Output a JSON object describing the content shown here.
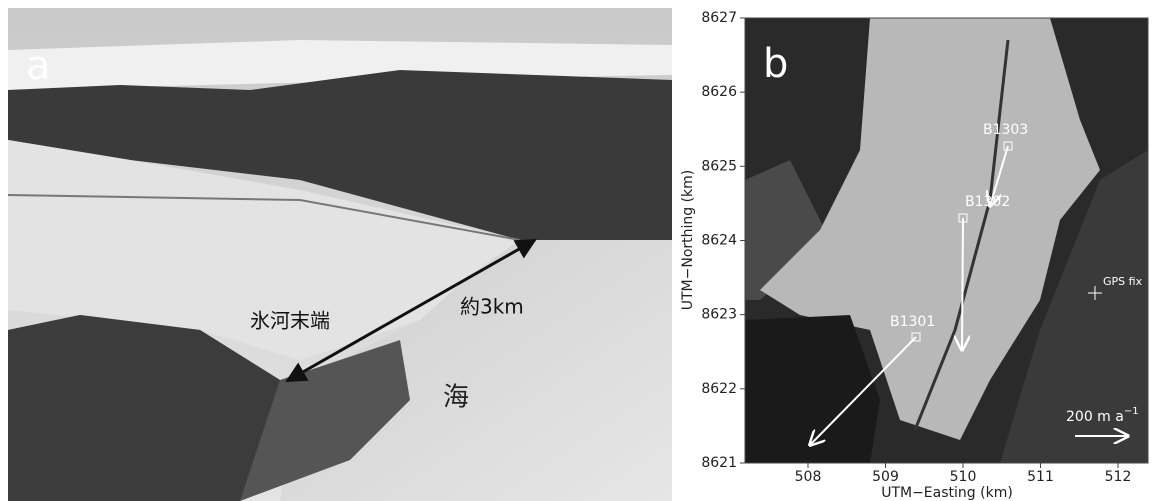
{
  "panel_a": {
    "label": "a",
    "annotations": {
      "terminus": "氷河末端",
      "distance": "約3km",
      "sea": "海"
    }
  },
  "panel_b": {
    "label": "b",
    "x_label": "UTM−Easting (km)",
    "y_label": "UTM−Northing (km)",
    "x_ticks": [
      508,
      509,
      510,
      511,
      512
    ],
    "y_ticks": [
      8621,
      8622,
      8623,
      8624,
      8625,
      8626,
      8627
    ],
    "stations": [
      "B1303",
      "B1302",
      "B1301"
    ],
    "gps_label": "GPS fix",
    "scale_label": {
      "text": "200 m a",
      "superscript": "−1"
    }
  }
}
